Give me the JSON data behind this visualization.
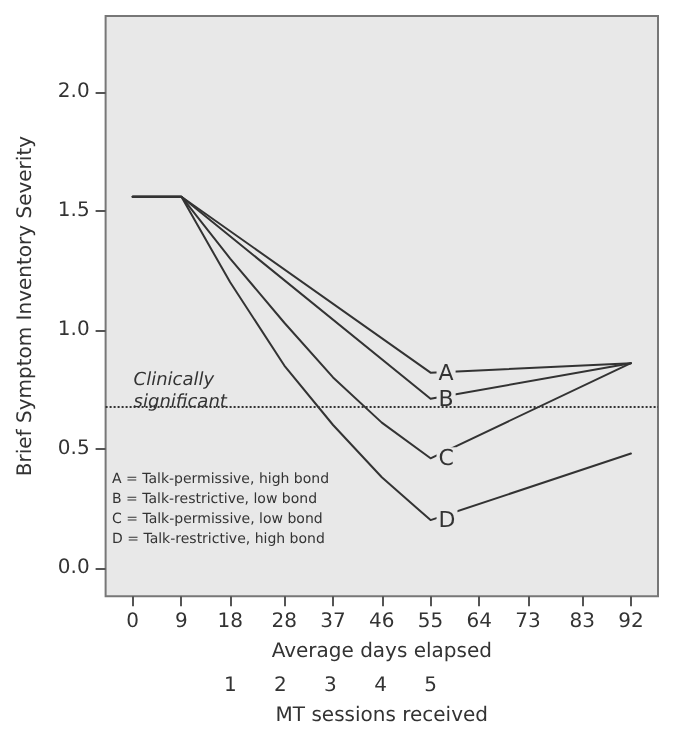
{
  "chart_data": {
    "type": "line",
    "xlabel": "Average days elapsed",
    "ylabel": "Brief Symptom Inventory Severity",
    "x2label": "MT sessions received",
    "xlim": [
      -5,
      97
    ],
    "xticks": [
      0,
      9,
      18,
      28,
      37,
      46,
      55,
      64,
      73,
      83,
      92
    ],
    "x2lim": [
      -1.49,
      9.54
    ],
    "x2ticks": [
      1,
      2,
      3,
      4,
      5
    ],
    "ylim": [
      -0.12,
      2.32
    ],
    "yticks": [
      {
        "value": 0,
        "label": "0.0"
      },
      {
        "value": 0.5,
        "label": "0.5"
      },
      {
        "value": 1,
        "label": "1.0"
      },
      {
        "value": 1.5,
        "label": "1.5"
      },
      {
        "value": 2,
        "label": "2.0"
      }
    ],
    "series": [
      {
        "name": "A",
        "color": "#333333",
        "x": [
          0,
          9,
          55,
          92
        ],
        "values": [
          1.56,
          1.56,
          0.82,
          0.86
        ]
      },
      {
        "name": "B",
        "color": "#333333",
        "x": [
          0,
          9,
          55,
          92
        ],
        "values": [
          1.56,
          1.56,
          0.71,
          0.86
        ]
      },
      {
        "name": "C",
        "color": "#333333",
        "x": [
          0,
          9,
          18,
          28,
          37,
          46,
          55,
          92
        ],
        "values": [
          1.56,
          1.56,
          1.3,
          1.03,
          0.8,
          0.61,
          0.46,
          0.86
        ]
      },
      {
        "name": "D",
        "color": "#333333",
        "x": [
          0,
          9,
          18,
          28,
          37,
          46,
          55,
          92
        ],
        "values": [
          1.56,
          1.56,
          1.2,
          0.85,
          0.6,
          0.38,
          0.2,
          0.48
        ]
      }
    ],
    "ref_lines": [
      {
        "axis": "y",
        "value": 0.68,
        "label": "Clinically significant",
        "line_style": "dotted",
        "color": "#333333"
      }
    ],
    "annotations": [
      "A = Talk-permissive, high bond",
      "B = Talk-restrictive, low bond",
      "C = Talk-permissive, low bond",
      "D = Talk-restrictive, high bond"
    ],
    "grid": false,
    "legend": false,
    "marker": "none",
    "line_style": "solid"
  }
}
